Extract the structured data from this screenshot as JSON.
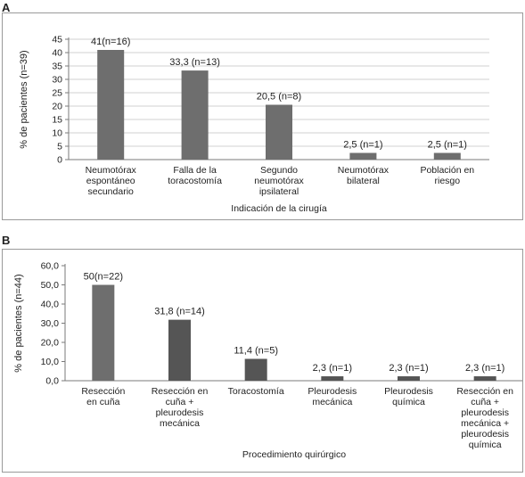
{
  "panels": {
    "a_label": "A",
    "b_label": "B"
  },
  "chart_data": [
    {
      "type": "bar",
      "categories": [
        [
          "Neumotórax",
          "espontáneo",
          "secundario"
        ],
        [
          "Falla de la",
          "toracostomía"
        ],
        [
          "Segundo",
          "neumotórax",
          "ipsilateral"
        ],
        [
          "Neumotórax",
          "bilateral"
        ],
        [
          "Población en",
          "riesgo"
        ]
      ],
      "values": [
        41,
        33.3,
        20.5,
        2.5,
        2.5
      ],
      "data_labels": [
        "41(n=16)",
        "33,3 (n=13)",
        "20,5 (n=8)",
        "2,5 (n=1)",
        "2,5 (n=1)"
      ],
      "xlabel": "Indicación de la cirugía",
      "ylabel": "% de pacientes (n=39)",
      "ylim": [
        0,
        45
      ],
      "yticks": [
        0,
        5,
        10,
        15,
        20,
        25,
        30,
        35,
        40,
        45
      ],
      "ytick_labels": [
        "0",
        "5",
        "10",
        "15",
        "20",
        "25",
        "30",
        "35",
        "40",
        "45"
      ],
      "grid": true,
      "bar_color": "#6e6e6e"
    },
    {
      "type": "bar",
      "categories": [
        [
          "Resección",
          "en cuña"
        ],
        [
          "Resección en",
          "cuña +",
          "pleurodesis",
          "mecánica"
        ],
        [
          "Toracostomía"
        ],
        [
          "Pleurodesis",
          "mecánica"
        ],
        [
          "Pleurodesis",
          "química"
        ],
        [
          "Resección en",
          "cuña +",
          "pleurodesis",
          "mecánica +",
          "pleurodesis",
          "química"
        ]
      ],
      "values": [
        50,
        31.8,
        11.4,
        2.3,
        2.3,
        2.3
      ],
      "data_labels": [
        "50(n=22)",
        "31,8 (n=14)",
        "11,4 (n=5)",
        "2,3 (n=1)",
        "2,3 (n=1)",
        "2,3 (n=1)"
      ],
      "xlabel": "Procedimiento quirúrgico",
      "ylabel": "% de pacientes (n=44)",
      "ylim": [
        0,
        60
      ],
      "yticks": [
        0,
        10,
        20,
        30,
        40,
        50,
        60
      ],
      "ytick_labels": [
        "0,0",
        "10,0",
        "20,0",
        "30,0",
        "40,0",
        "50,0",
        "60,0"
      ],
      "grid": false,
      "bar_colors": [
        "#6e6e6e",
        "#555555",
        "#555555",
        "#555555",
        "#555555",
        "#555555"
      ]
    }
  ]
}
